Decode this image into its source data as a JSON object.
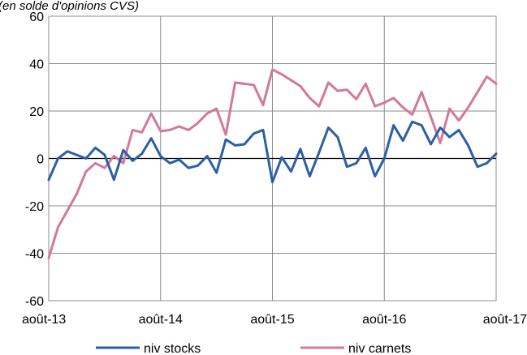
{
  "chart_data": {
    "type": "line",
    "subtitle": "(en solde d'opinions CVS)",
    "x_labels": [
      "août-13",
      "août-14",
      "août-15",
      "août-16",
      "août-17"
    ],
    "ylim": [
      -60,
      60
    ],
    "y_ticks": [
      "60",
      "40",
      "20",
      "0",
      "-20",
      "-40",
      "-60"
    ],
    "grid": true,
    "legend_position": "bottom",
    "series": [
      {
        "name": "niv stocks",
        "color": "#2C5FA3",
        "values": [
          -9,
          0,
          3,
          1.5,
          0,
          4.5,
          1.5,
          -9,
          3.5,
          -1,
          2,
          8.5,
          1,
          -2,
          -0.5,
          -4,
          -3,
          1,
          -6,
          8,
          5.5,
          6,
          10.5,
          12,
          -10,
          0.5,
          -5.5,
          4,
          -7.5,
          2.5,
          13,
          9,
          -3.5,
          -2,
          4.5,
          -7.5,
          0,
          14,
          7.5,
          15.5,
          14,
          6,
          13,
          9,
          12,
          5.5,
          -3.5,
          -2,
          2
        ]
      },
      {
        "name": "niv carnets",
        "color": "#D3789B",
        "values": [
          -42,
          -29,
          -22,
          -15,
          -5.5,
          -2,
          -4,
          1,
          -2,
          12,
          11,
          19,
          11.5,
          12,
          13.5,
          12,
          15,
          19,
          21,
          10,
          32,
          31.5,
          31,
          22.5,
          37.5,
          35.5,
          33,
          30.5,
          25.5,
          22,
          32,
          28.5,
          29,
          25,
          31.5,
          22,
          23.5,
          25.5,
          21.5,
          18.5,
          28,
          17.5,
          6.5,
          21,
          16,
          21.5,
          28,
          34.5,
          31.5
        ]
      }
    ]
  }
}
